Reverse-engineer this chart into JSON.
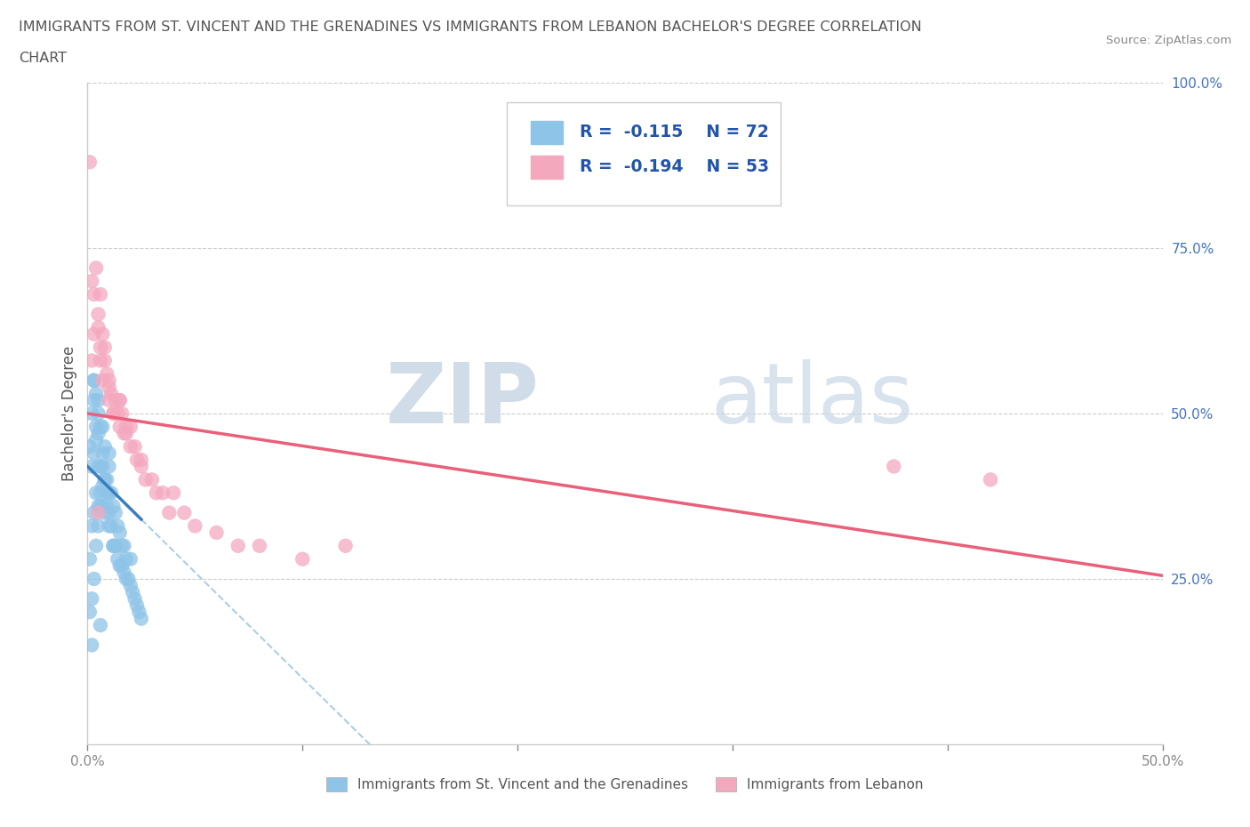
{
  "title_line1": "IMMIGRANTS FROM ST. VINCENT AND THE GRENADINES VS IMMIGRANTS FROM LEBANON BACHELOR'S DEGREE CORRELATION",
  "title_line2": "CHART",
  "source": "Source: ZipAtlas.com",
  "ylabel": "Bachelor's Degree",
  "xlim": [
    0.0,
    0.5
  ],
  "ylim": [
    0.0,
    1.0
  ],
  "R_blue": -0.115,
  "N_blue": 72,
  "R_pink": -0.194,
  "N_pink": 53,
  "color_blue": "#8ec4e8",
  "color_pink": "#f4a8be",
  "color_blue_line": "#3a7ebf",
  "color_pink_line": "#e8607a",
  "color_blue_dash": "#aacfe8",
  "watermark_zip": "ZIP",
  "watermark_atlas": "atlas",
  "legend_label_blue": "Immigrants from St. Vincent and the Grenadines",
  "legend_label_pink": "Immigrants from Lebanon",
  "blue_line_x0": 0.0,
  "blue_line_x1": 0.025,
  "blue_line_y0": 0.42,
  "blue_line_y1": 0.34,
  "pink_line_x0": 0.0,
  "pink_line_x1": 0.5,
  "pink_line_y0": 0.5,
  "pink_line_y1": 0.255,
  "blue_scatter_x": [
    0.001,
    0.001,
    0.002,
    0.002,
    0.002,
    0.003,
    0.003,
    0.003,
    0.003,
    0.004,
    0.004,
    0.004,
    0.004,
    0.005,
    0.005,
    0.005,
    0.005,
    0.006,
    0.006,
    0.006,
    0.007,
    0.007,
    0.007,
    0.008,
    0.008,
    0.008,
    0.009,
    0.009,
    0.01,
    0.01,
    0.01,
    0.011,
    0.011,
    0.012,
    0.012,
    0.013,
    0.013,
    0.014,
    0.014,
    0.015,
    0.015,
    0.016,
    0.016,
    0.017,
    0.017,
    0.018,
    0.018,
    0.019,
    0.02,
    0.02,
    0.021,
    0.022,
    0.023,
    0.024,
    0.025,
    0.001,
    0.002,
    0.003,
    0.004,
    0.005,
    0.006,
    0.007,
    0.008,
    0.009,
    0.01,
    0.012,
    0.003,
    0.005,
    0.007,
    0.01,
    0.002,
    0.006
  ],
  "blue_scatter_y": [
    0.28,
    0.45,
    0.33,
    0.42,
    0.5,
    0.35,
    0.44,
    0.52,
    0.55,
    0.38,
    0.46,
    0.48,
    0.53,
    0.36,
    0.42,
    0.47,
    0.5,
    0.38,
    0.42,
    0.48,
    0.36,
    0.42,
    0.44,
    0.35,
    0.4,
    0.45,
    0.36,
    0.4,
    0.33,
    0.38,
    0.42,
    0.33,
    0.38,
    0.3,
    0.36,
    0.3,
    0.35,
    0.28,
    0.33,
    0.27,
    0.32,
    0.27,
    0.3,
    0.26,
    0.3,
    0.25,
    0.28,
    0.25,
    0.24,
    0.28,
    0.23,
    0.22,
    0.21,
    0.2,
    0.19,
    0.2,
    0.22,
    0.25,
    0.3,
    0.33,
    0.36,
    0.39,
    0.4,
    0.38,
    0.35,
    0.3,
    0.55,
    0.52,
    0.48,
    0.44,
    0.15,
    0.18
  ],
  "pink_scatter_x": [
    0.001,
    0.002,
    0.003,
    0.004,
    0.005,
    0.005,
    0.006,
    0.006,
    0.007,
    0.008,
    0.008,
    0.009,
    0.01,
    0.01,
    0.011,
    0.012,
    0.013,
    0.014,
    0.015,
    0.015,
    0.016,
    0.017,
    0.018,
    0.02,
    0.02,
    0.022,
    0.023,
    0.025,
    0.027,
    0.03,
    0.032,
    0.035,
    0.038,
    0.04,
    0.045,
    0.05,
    0.06,
    0.07,
    0.08,
    0.1,
    0.12,
    0.003,
    0.006,
    0.01,
    0.015,
    0.007,
    0.012,
    0.018,
    0.025,
    0.005,
    0.375,
    0.42,
    0.002
  ],
  "pink_scatter_y": [
    0.88,
    0.7,
    0.68,
    0.72,
    0.65,
    0.63,
    0.68,
    0.6,
    0.62,
    0.6,
    0.58,
    0.56,
    0.55,
    0.52,
    0.53,
    0.5,
    0.52,
    0.5,
    0.52,
    0.48,
    0.5,
    0.47,
    0.48,
    0.45,
    0.48,
    0.45,
    0.43,
    0.43,
    0.4,
    0.4,
    0.38,
    0.38,
    0.35,
    0.38,
    0.35,
    0.33,
    0.32,
    0.3,
    0.3,
    0.28,
    0.3,
    0.62,
    0.58,
    0.54,
    0.52,
    0.55,
    0.5,
    0.47,
    0.42,
    0.35,
    0.42,
    0.4,
    0.58
  ]
}
